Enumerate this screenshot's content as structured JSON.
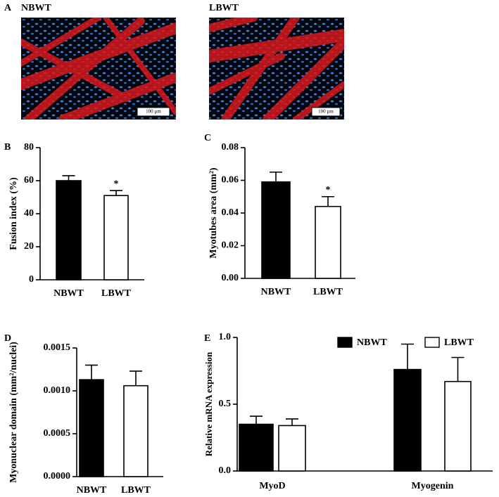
{
  "figure_a": {
    "panel_label": "A",
    "images": [
      {
        "label": "NBWT",
        "scale_bar": "100 µm"
      },
      {
        "label": "LBWT",
        "scale_bar": "100 µm"
      }
    ]
  },
  "chart_data": [
    {
      "type": "bar",
      "panel_label": "B",
      "ylabel": "Fusion index (%)",
      "categories": [
        "NBWT",
        "LBWT"
      ],
      "values": [
        60,
        51
      ],
      "errors": [
        3,
        3
      ],
      "colors": [
        "#000000",
        "#ffffff"
      ],
      "annotations": [
        null,
        "*"
      ],
      "ylim": [
        0,
        80
      ],
      "yticks": [
        0,
        20,
        40,
        60,
        80
      ]
    },
    {
      "type": "bar",
      "panel_label": "C",
      "ylabel": "Myotubes area (mm²)",
      "categories": [
        "NBWT",
        "LBWT"
      ],
      "values": [
        0.059,
        0.044
      ],
      "errors": [
        0.006,
        0.006
      ],
      "colors": [
        "#000000",
        "#ffffff"
      ],
      "annotations": [
        null,
        "*"
      ],
      "ylim": [
        0,
        0.08
      ],
      "yticks": [
        {
          "value": 0,
          "label": "0.00"
        },
        0.02,
        0.04,
        0.06,
        0.08
      ]
    },
    {
      "type": "bar",
      "panel_label": "D",
      "ylabel": "Myonuclear domain (mm²/nuclei)",
      "categories": [
        "NBWT",
        "LBWT"
      ],
      "values": [
        0.00113,
        0.00106
      ],
      "errors": [
        0.00017,
        0.00017
      ],
      "colors": [
        "#000000",
        "#ffffff"
      ],
      "ylim": [
        0,
        0.0015
      ],
      "yticks": [
        {
          "value": 0,
          "label": "0.0000"
        },
        {
          "value": 0.0005,
          "label": "0.0005"
        },
        {
          "value": 0.001,
          "label": "0.0010"
        },
        {
          "value": 0.0015,
          "label": "0.0015"
        }
      ]
    },
    {
      "type": "grouped-bar",
      "panel_label": "E",
      "ylabel": "Relative mRNA expression",
      "categories": [
        "MyoD",
        "Myogenin"
      ],
      "series": [
        {
          "name": "NBWT",
          "color": "#000000",
          "values": [
            0.35,
            0.76
          ],
          "errors": [
            0.06,
            0.19
          ]
        },
        {
          "name": "LBWT",
          "color": "#ffffff",
          "values": [
            0.34,
            0.67
          ],
          "errors": [
            0.05,
            0.18
          ]
        }
      ],
      "legend": "top-right",
      "ylim": [
        0,
        1.0
      ],
      "yticks": [
        {
          "value": 0,
          "label": "0.0"
        },
        0.5,
        {
          "value": 1,
          "label": "1.0"
        }
      ]
    }
  ]
}
